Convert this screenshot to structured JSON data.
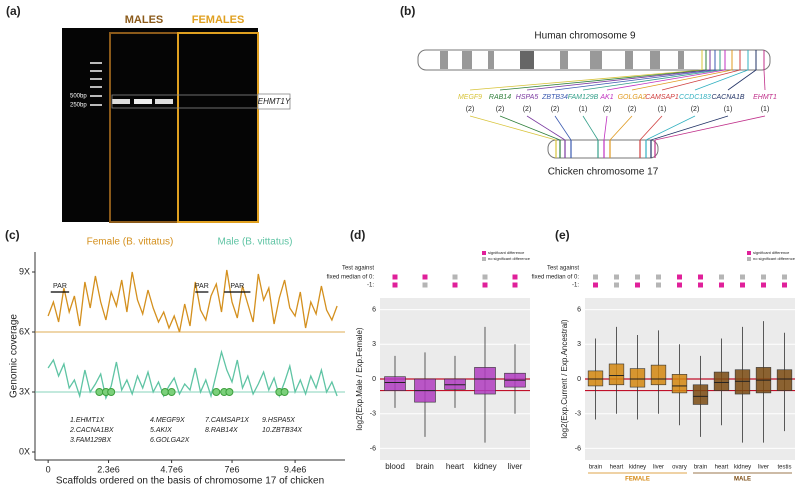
{
  "panel_a": {
    "panel_label": "(a)",
    "group_labels": [
      "MALES",
      "FEMALES"
    ],
    "ladder_labels": [
      "500bp",
      "250bp"
    ],
    "band_label": "EHMT1Y"
  },
  "panel_b": {
    "panel_label": "(b)",
    "human_label": "Human chromosome 9",
    "chicken_label": "Chicken chromosome 17",
    "genes": [
      {
        "name": "MEGF9",
        "count": "(2)",
        "color": "#d8c43a"
      },
      {
        "name": "RAB14",
        "count": "(2)",
        "color": "#2f7f3a"
      },
      {
        "name": "HSPA5",
        "count": "(2)",
        "color": "#7a3aa0"
      },
      {
        "name": "ZBTB34",
        "count": "(2)",
        "color": "#3a5ab0"
      },
      {
        "name": "FAM129B",
        "count": "(1)",
        "color": "#34a08a"
      },
      {
        "name": "AK1",
        "count": "(2)",
        "color": "#c030c0"
      },
      {
        "name": "GOLGA2",
        "count": "(2)",
        "color": "#e09a20"
      },
      {
        "name": "CAMSAP1",
        "count": "(1)",
        "color": "#d04040"
      },
      {
        "name": "CCDC183",
        "count": "(2)",
        "color": "#30b0c0"
      },
      {
        "name": "CACNA1B",
        "count": "(1)",
        "color": "#223366"
      },
      {
        "name": "EHMT1",
        "count": "(1)",
        "color": "#c0308a"
      }
    ]
  },
  "chart_data": [
    {
      "type": "line",
      "panel_label": "(c)",
      "xlabel": "Scaffolds ordered on the basis of chromosome 17 of chicken",
      "ylabel": "Genomic coverage",
      "x": [
        0,
        200000,
        400000,
        600000,
        800000,
        1000000,
        1200000,
        1400000,
        1600000,
        1800000,
        2000000,
        2200000,
        2400000,
        2600000,
        2800000,
        3000000,
        3200000,
        3400000,
        3600000,
        3800000,
        4000000,
        4200000,
        4400000,
        4600000,
        4800000,
        5000000,
        5200000,
        5400000,
        5600000,
        5800000,
        6000000,
        6200000,
        6400000,
        6600000,
        6800000,
        7000000,
        7200000,
        7400000,
        7600000,
        7800000,
        8000000,
        8200000,
        8400000,
        8600000,
        8800000,
        9000000,
        9200000,
        9400000,
        9600000,
        9800000,
        10000000,
        10200000,
        10400000,
        10600000,
        10800000,
        11000000
      ],
      "series": [
        {
          "name": "Female (B. vittatus)",
          "color": "#d4901e",
          "values": [
            6.8,
            7.5,
            6.5,
            8.2,
            7.0,
            7.8,
            6.3,
            8.5,
            7.2,
            8.8,
            7.5,
            6.6,
            8.0,
            7.3,
            8.6,
            7.0,
            9.0,
            7.6,
            6.9,
            8.1,
            7.2,
            6.5,
            7.0,
            6.2,
            6.8,
            6.0,
            7.4,
            6.3,
            8.5,
            7.1,
            6.6,
            7.8,
            8.4,
            7.0,
            9.1,
            7.5,
            6.7,
            8.3,
            7.4,
            6.5,
            8.9,
            7.6,
            8.2,
            6.4,
            7.7,
            8.6,
            7.2,
            6.8,
            8.0,
            6.2,
            7.5,
            6.9,
            8.3,
            7.1,
            6.6,
            7.3
          ]
        },
        {
          "name": "Male (B. vittatus)",
          "color": "#5fc4a4",
          "values": [
            4.2,
            4.6,
            3.8,
            4.4,
            3.2,
            3.6,
            2.8,
            4.1,
            3.0,
            3.4,
            3.9,
            2.7,
            3.3,
            4.5,
            3.1,
            3.6,
            2.9,
            3.8,
            3.2,
            4.0,
            3.0,
            3.5,
            2.8,
            3.3,
            3.7,
            2.9,
            3.4,
            3.1,
            4.2,
            3.0,
            3.6,
            2.8,
            3.9,
            5.0,
            4.1,
            3.5,
            4.6,
            3.2,
            3.8,
            2.9,
            3.4,
            4.0,
            3.1,
            3.7,
            2.8,
            3.5,
            4.3,
            3.0,
            3.6,
            2.9,
            3.8,
            3.2,
            4.1,
            3.0,
            3.5,
            2.8
          ]
        }
      ],
      "markers": {
        "color": "#3da03d",
        "x": [
          1950000,
          2200000,
          2400000,
          4450000,
          4700000,
          6400000,
          6700000,
          6900000,
          8800000,
          9000000
        ],
        "values": [
          3,
          3,
          3,
          3,
          3,
          3,
          3,
          3,
          3,
          3
        ]
      },
      "reference_lines": [
        {
          "value": 6,
          "color": "#d4901e"
        },
        {
          "value": 3,
          "color": "#5fc4a4"
        }
      ],
      "annotations": [
        {
          "text": "PAR",
          "span": [
            100000,
            800000
          ]
        },
        {
          "text": "PAR",
          "span": [
            5600000,
            6100000
          ]
        },
        {
          "text": "PAR",
          "span": [
            6700000,
            7700000
          ]
        }
      ],
      "gene_list": [
        "1.EHMT1X",
        "2.CACNA1BX",
        "3.FAM129BX",
        "4.MEGF9X",
        "5.AKIX",
        "6.GOLGA2X",
        "7.CAMSAP1X",
        "8.RAB14X",
        "9.HSPA5X",
        "10.ZBTB34X"
      ],
      "xlim": [
        -500000,
        11300000
      ],
      "xticks": [
        0,
        {
          "value": 2300000,
          "label": "2.3e6"
        },
        {
          "value": 4700000,
          "label": "4.7e6"
        },
        {
          "value": 7000000,
          "label": "7e6"
        },
        {
          "value": 9400000,
          "label": "9.4e6"
        }
      ],
      "ylim": [
        -0.4,
        10
      ],
      "yticks": [
        {
          "value": 0,
          "label": "0X"
        },
        {
          "value": 3,
          "label": "3X"
        },
        {
          "value": 6,
          "label": "6X"
        },
        {
          "value": 9,
          "label": "9X"
        }
      ]
    },
    {
      "type": "box",
      "panel_label": "(d)",
      "ylabel": "log2(Exp.Male / Exp.Female)",
      "color": "#b03cc0",
      "categories": [
        "blood",
        "brain",
        "heart",
        "kidney",
        "liver"
      ],
      "boxes": [
        {
          "low": -2.5,
          "q1": -1.0,
          "median": -0.3,
          "q3": 0.2,
          "high": 2.0
        },
        {
          "low": -5.0,
          "q1": -2.0,
          "median": -1.0,
          "q3": 0.0,
          "high": 2.3
        },
        {
          "low": -2.5,
          "q1": -0.9,
          "median": -0.5,
          "q3": 0.0,
          "high": 2.0
        },
        {
          "low": -5.5,
          "q1": -1.3,
          "median": 0.0,
          "q3": 1.0,
          "high": 4.5
        },
        {
          "low": -3.0,
          "q1": -0.7,
          "median": -0.1,
          "q3": 0.5,
          "high": 3.0
        }
      ],
      "reference_lines": [
        {
          "value": 0,
          "color": "#c0102a"
        },
        {
          "value": -1,
          "color": "#c0102a"
        }
      ],
      "tests": {
        "title": "Test against",
        "rows": [
          {
            "label": "fixed median of 0:",
            "significant": [
              true,
              true,
              false,
              false,
              true
            ]
          },
          {
            "label": "-1:",
            "significant": [
              true,
              false,
              true,
              true,
              true
            ]
          }
        ]
      },
      "legend": [
        {
          "label": "significant difference",
          "color": "#e0209a"
        },
        {
          "label": "no significant difference",
          "color": "#b5b5b5"
        }
      ],
      "ylim": [
        -7,
        7
      ],
      "yticks": [
        -6,
        -3,
        0,
        3,
        6
      ],
      "grid": true,
      "background": "#ebebeb"
    },
    {
      "type": "box",
      "panel_label": "(e)",
      "ylabel": "log2(Exp.Current / Exp.Ancestral)",
      "categories": [
        "brain",
        "heart",
        "kidney",
        "liver",
        "ovary",
        "brain",
        "heart",
        "kidney",
        "liver",
        "testis"
      ],
      "colors": [
        "#d4870f",
        "#d4870f",
        "#d4870f",
        "#d4870f",
        "#d4870f",
        "#7a4a10",
        "#7a4a10",
        "#7a4a10",
        "#7a4a10",
        "#7a4a10"
      ],
      "groups": [
        {
          "label": "FEMALE",
          "color": "#d4870f"
        },
        {
          "label": "MALE",
          "color": "#7a4a10"
        }
      ],
      "boxes": [
        {
          "low": -3.5,
          "q1": -0.6,
          "median": 0.0,
          "q3": 0.7,
          "high": 3.5
        },
        {
          "low": -3.0,
          "q1": -0.5,
          "median": 0.3,
          "q3": 1.3,
          "high": 4.5
        },
        {
          "low": -3.5,
          "q1": -0.7,
          "median": 0.0,
          "q3": 0.9,
          "high": 3.8
        },
        {
          "low": -3.0,
          "q1": -0.5,
          "median": 0.0,
          "q3": 1.2,
          "high": 4.2
        },
        {
          "low": -4.0,
          "q1": -1.2,
          "median": -0.6,
          "q3": 0.4,
          "high": 3.0
        },
        {
          "low": -5.0,
          "q1": -2.2,
          "median": -1.5,
          "q3": -0.5,
          "high": 2.0
        },
        {
          "low": -4.0,
          "q1": -1.0,
          "median": -0.3,
          "q3": 0.6,
          "high": 3.5
        },
        {
          "low": -5.5,
          "q1": -1.3,
          "median": -0.2,
          "q3": 0.8,
          "high": 4.5
        },
        {
          "low": -5.5,
          "q1": -1.2,
          "median": -0.1,
          "q3": 1.0,
          "high": 5.0
        },
        {
          "low": -4.5,
          "q1": -1.0,
          "median": 0.0,
          "q3": 0.8,
          "high": 4.0
        }
      ],
      "reference_lines": [
        {
          "value": 0,
          "color": "#c0102a"
        },
        {
          "value": -1,
          "color": "#c0102a"
        }
      ],
      "tests": {
        "title": "Test against",
        "rows": [
          {
            "label": "fixed median of 0:",
            "significant": [
              false,
              false,
              false,
              false,
              true,
              true,
              false,
              false,
              false,
              false
            ]
          },
          {
            "label": "-1:",
            "significant": [
              true,
              false,
              true,
              false,
              true,
              true,
              true,
              true,
              true,
              true
            ]
          }
        ]
      },
      "legend": [
        {
          "label": "significant difference",
          "color": "#e0209a"
        },
        {
          "label": "no significant difference",
          "color": "#b5b5b5"
        }
      ],
      "ylim": [
        -7,
        7
      ],
      "yticks": [
        -6,
        -3,
        0,
        3,
        6
      ],
      "grid": true,
      "background": "#ebebeb"
    }
  ]
}
